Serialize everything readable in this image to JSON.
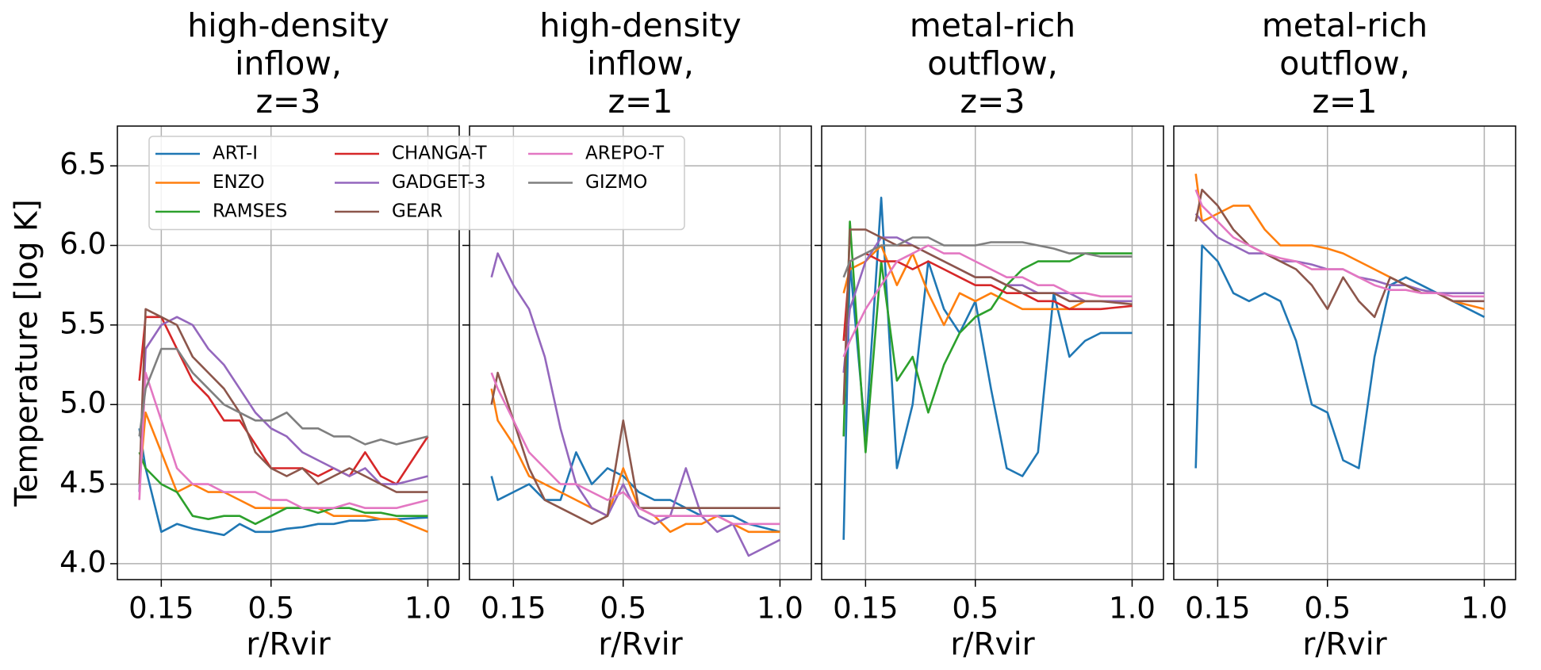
{
  "chart_data": [
    {
      "type": "line",
      "title": [
        "high-density",
        "inflow,",
        "z=3"
      ],
      "xlabel": "r/Rvir",
      "ylabel": "Temperature [log K]",
      "xlim": [
        0.01,
        1.1
      ],
      "ylim": [
        3.9,
        6.75
      ],
      "xticks": [
        0.15,
        0.5,
        {
          "value": 1,
          "label": "1.0"
        }
      ],
      "yticks": [
        {
          "value": 4,
          "label": "4.0"
        },
        4.5,
        {
          "value": 5,
          "label": "5.0"
        },
        5.5,
        {
          "value": 6,
          "label": "6.0"
        },
        6.5
      ],
      "ytick_labels": true,
      "grid": true,
      "legend": "upper left",
      "legend_columns": 3,
      "x": [
        0.08,
        0.1,
        0.15,
        0.2,
        0.25,
        0.3,
        0.35,
        0.4,
        0.45,
        0.5,
        0.55,
        0.6,
        0.65,
        0.7,
        0.75,
        0.8,
        0.85,
        0.9,
        1.0
      ],
      "series": [
        {
          "name": "ART-I",
          "color": "#1f77b4",
          "values": [
            4.85,
            4.6,
            4.2,
            4.25,
            4.22,
            4.2,
            4.18,
            4.25,
            4.2,
            4.2,
            4.22,
            4.23,
            4.25,
            4.25,
            4.27,
            4.27,
            4.28,
            4.28,
            4.29
          ]
        },
        {
          "name": "ENZO",
          "color": "#ff7f0e",
          "values": [
            4.5,
            4.95,
            4.7,
            4.45,
            4.5,
            4.45,
            4.45,
            4.4,
            4.35,
            4.35,
            4.35,
            4.35,
            4.35,
            4.3,
            4.3,
            4.3,
            4.28,
            4.28,
            4.2
          ]
        },
        {
          "name": "RAMSES",
          "color": "#2ca02c",
          "values": [
            4.7,
            4.6,
            4.5,
            4.45,
            4.3,
            4.28,
            4.3,
            4.3,
            4.25,
            4.3,
            4.35,
            4.35,
            4.32,
            4.35,
            4.35,
            4.32,
            4.32,
            4.3,
            4.3
          ]
        },
        {
          "name": "CHANGA-T",
          "color": "#d62728",
          "values": [
            5.15,
            5.55,
            5.55,
            5.35,
            5.15,
            5.05,
            4.9,
            4.9,
            4.75,
            4.6,
            4.6,
            4.6,
            4.55,
            4.6,
            4.55,
            4.7,
            4.55,
            4.5,
            4.8
          ]
        },
        {
          "name": "GADGET-3",
          "color": "#9467bd",
          "values": [
            4.45,
            5.35,
            5.5,
            5.55,
            5.5,
            5.35,
            5.25,
            5.1,
            4.95,
            4.85,
            4.8,
            4.7,
            4.65,
            4.6,
            4.55,
            4.6,
            4.5,
            4.5,
            4.55
          ]
        },
        {
          "name": "GEAR",
          "color": "#8c564b",
          "values": [
            4.5,
            5.6,
            5.55,
            5.5,
            5.3,
            5.2,
            5.1,
            4.95,
            4.7,
            4.6,
            4.55,
            4.6,
            4.5,
            4.55,
            4.6,
            4.55,
            4.5,
            4.45,
            4.45
          ]
        },
        {
          "name": "AREPO-T",
          "color": "#e377c2",
          "values": [
            4.4,
            5.2,
            4.9,
            4.6,
            4.5,
            4.5,
            4.45,
            4.45,
            4.45,
            4.4,
            4.4,
            4.35,
            4.35,
            4.35,
            4.38,
            4.35,
            4.35,
            4.35,
            4.4
          ]
        },
        {
          "name": "GIZMO",
          "color": "#7f7f7f",
          "values": [
            4.8,
            5.1,
            5.35,
            5.35,
            5.2,
            5.1,
            5.0,
            4.95,
            4.9,
            4.9,
            4.95,
            4.85,
            4.85,
            4.8,
            4.8,
            4.75,
            4.78,
            4.75,
            4.8
          ]
        }
      ]
    },
    {
      "type": "line",
      "title": [
        "high-density",
        "inflow,",
        "z=1"
      ],
      "xlabel": "r/Rvir",
      "xlim": [
        0.01,
        1.1
      ],
      "ylim": [
        3.9,
        6.75
      ],
      "xticks": [
        0.15,
        0.5,
        {
          "value": 1,
          "label": "1.0"
        }
      ],
      "yticks": [
        4,
        4.5,
        5,
        5.5,
        6,
        6.5
      ],
      "ytick_labels": false,
      "grid": true,
      "x": [
        0.08,
        0.1,
        0.15,
        0.2,
        0.25,
        0.3,
        0.35,
        0.4,
        0.45,
        0.5,
        0.55,
        0.6,
        0.65,
        0.7,
        0.75,
        0.8,
        0.85,
        0.9,
        1.0
      ],
      "series": [
        {
          "color": "#1f77b4",
          "values": [
            4.55,
            4.4,
            4.45,
            4.5,
            4.4,
            4.4,
            4.7,
            4.5,
            4.6,
            4.55,
            4.45,
            4.4,
            4.4,
            4.35,
            4.3,
            4.3,
            4.3,
            4.25,
            4.2
          ]
        },
        {
          "color": "#ff7f0e",
          "values": [
            5.1,
            4.9,
            4.75,
            4.55,
            4.5,
            4.45,
            4.4,
            4.35,
            4.3,
            4.6,
            4.35,
            4.3,
            4.2,
            4.25,
            4.25,
            4.3,
            4.25,
            4.2,
            4.2
          ]
        },
        {
          "color": "#9467bd",
          "values": [
            5.8,
            5.95,
            5.75,
            5.6,
            5.3,
            4.85,
            4.5,
            4.35,
            4.3,
            4.5,
            4.3,
            4.25,
            4.3,
            4.6,
            4.3,
            4.2,
            4.25,
            4.05,
            4.15
          ]
        },
        {
          "color": "#8c564b",
          "values": [
            5.0,
            5.2,
            4.9,
            4.6,
            4.4,
            4.35,
            4.3,
            4.25,
            4.3,
            4.9,
            4.35,
            4.35,
            4.35,
            4.35,
            4.35,
            4.35,
            4.35,
            4.35,
            4.35
          ]
        },
        {
          "color": "#e377c2",
          "values": [
            5.2,
            5.1,
            4.9,
            4.7,
            4.6,
            4.5,
            4.5,
            4.45,
            4.4,
            4.45,
            4.35,
            4.3,
            4.3,
            4.3,
            4.3,
            4.3,
            4.25,
            4.25,
            4.25
          ]
        }
      ]
    },
    {
      "type": "line",
      "title": [
        "metal-rich",
        "outflow,",
        "z=3"
      ],
      "xlabel": "r/Rvir",
      "xlim": [
        0.01,
        1.1
      ],
      "ylim": [
        3.9,
        6.75
      ],
      "xticks": [
        0.15,
        0.5,
        {
          "value": 1,
          "label": "1.0"
        }
      ],
      "yticks": [
        4,
        4.5,
        5,
        5.5,
        6,
        6.5
      ],
      "ytick_labels": false,
      "grid": true,
      "x": [
        0.08,
        0.1,
        0.15,
        0.2,
        0.25,
        0.3,
        0.35,
        0.4,
        0.45,
        0.5,
        0.55,
        0.6,
        0.65,
        0.7,
        0.75,
        0.8,
        0.85,
        0.9,
        1.0
      ],
      "series": [
        {
          "color": "#1f77b4",
          "values": [
            4.15,
            5.9,
            4.8,
            6.3,
            4.6,
            5.0,
            5.9,
            5.6,
            5.45,
            5.65,
            5.1,
            4.6,
            4.55,
            4.7,
            5.7,
            5.3,
            5.4,
            5.45,
            5.45
          ]
        },
        {
          "color": "#ff7f0e",
          "values": [
            5.7,
            5.85,
            5.9,
            6.0,
            5.75,
            5.95,
            5.7,
            5.5,
            5.7,
            5.65,
            5.7,
            5.65,
            5.6,
            5.6,
            5.6,
            5.6,
            5.65,
            5.65,
            5.65
          ]
        },
        {
          "color": "#2ca02c",
          "values": [
            4.8,
            6.15,
            4.7,
            5.9,
            5.15,
            5.3,
            4.95,
            5.25,
            5.45,
            5.55,
            5.6,
            5.75,
            5.85,
            5.9,
            5.9,
            5.9,
            5.95,
            5.95,
            5.95
          ]
        },
        {
          "color": "#d62728",
          "values": [
            5.4,
            5.9,
            5.95,
            5.9,
            5.9,
            5.85,
            5.9,
            5.85,
            5.8,
            5.75,
            5.75,
            5.7,
            5.7,
            5.65,
            5.65,
            5.6,
            5.6,
            5.6,
            5.62
          ]
        },
        {
          "color": "#9467bd",
          "values": [
            5.2,
            5.6,
            5.9,
            6.05,
            6.05,
            6.0,
            5.95,
            5.9,
            5.85,
            5.8,
            5.8,
            5.75,
            5.75,
            5.7,
            5.7,
            5.7,
            5.65,
            5.65,
            5.65
          ]
        },
        {
          "color": "#8c564b",
          "values": [
            5.0,
            6.1,
            6.1,
            6.05,
            6.0,
            6.0,
            5.95,
            5.9,
            5.85,
            5.8,
            5.8,
            5.75,
            5.7,
            5.7,
            5.7,
            5.65,
            5.65,
            5.65,
            5.63
          ]
        },
        {
          "color": "#e377c2",
          "values": [
            5.3,
            5.4,
            5.6,
            5.75,
            5.9,
            5.95,
            6.0,
            5.95,
            5.95,
            5.9,
            5.85,
            5.8,
            5.8,
            5.75,
            5.75,
            5.7,
            5.7,
            5.68,
            5.68
          ]
        },
        {
          "color": "#7f7f7f",
          "values": [
            5.8,
            5.9,
            5.95,
            6.0,
            6.0,
            6.05,
            6.05,
            6.0,
            6.0,
            6.0,
            6.02,
            6.02,
            6.02,
            6.0,
            5.98,
            5.95,
            5.95,
            5.93,
            5.93
          ]
        }
      ]
    },
    {
      "type": "line",
      "title": [
        "metal-rich",
        "outflow,",
        "z=1"
      ],
      "xlabel": "r/Rvir",
      "xlim": [
        0.01,
        1.1
      ],
      "ylim": [
        3.9,
        6.75
      ],
      "xticks": [
        0.15,
        0.5,
        {
          "value": 1,
          "label": "1.0"
        }
      ],
      "yticks": [
        4,
        4.5,
        5,
        5.5,
        6,
        6.5
      ],
      "ytick_labels": false,
      "grid": true,
      "x": [
        0.08,
        0.1,
        0.15,
        0.2,
        0.25,
        0.3,
        0.35,
        0.4,
        0.45,
        0.5,
        0.55,
        0.6,
        0.65,
        0.7,
        0.75,
        0.8,
        0.85,
        0.9,
        1.0
      ],
      "series": [
        {
          "color": "#1f77b4",
          "values": [
            4.6,
            6.0,
            5.9,
            5.7,
            5.65,
            5.7,
            5.65,
            5.4,
            5.0,
            4.95,
            4.65,
            4.6,
            5.3,
            5.75,
            5.8,
            5.75,
            5.7,
            5.65,
            5.55
          ]
        },
        {
          "color": "#ff7f0e",
          "values": [
            6.45,
            6.15,
            6.2,
            6.25,
            6.25,
            6.1,
            6.0,
            6.0,
            6.0,
            5.98,
            5.95,
            5.9,
            5.85,
            5.8,
            5.75,
            5.7,
            5.7,
            5.65,
            5.6
          ]
        },
        {
          "color": "#9467bd",
          "values": [
            6.2,
            6.15,
            6.05,
            6.0,
            5.95,
            5.95,
            5.9,
            5.9,
            5.88,
            5.85,
            5.85,
            5.8,
            5.78,
            5.75,
            5.75,
            5.72,
            5.7,
            5.7,
            5.7
          ]
        },
        {
          "color": "#8c564b",
          "values": [
            6.15,
            6.35,
            6.25,
            6.1,
            6.0,
            5.95,
            5.9,
            5.85,
            5.75,
            5.6,
            5.8,
            5.65,
            5.55,
            5.8,
            5.75,
            5.7,
            5.7,
            5.65,
            5.65
          ]
        },
        {
          "color": "#e377c2",
          "values": [
            6.35,
            6.25,
            6.15,
            6.05,
            6.0,
            5.95,
            5.92,
            5.9,
            5.85,
            5.85,
            5.85,
            5.8,
            5.75,
            5.72,
            5.72,
            5.7,
            5.7,
            5.68,
            5.68
          ]
        }
      ]
    }
  ]
}
